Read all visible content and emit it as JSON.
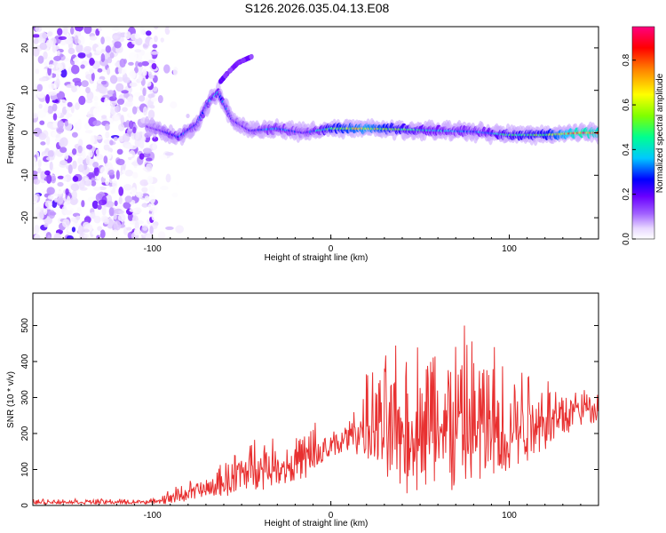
{
  "figure": {
    "title": "S126.2026.035.04.13.E08"
  },
  "chart_data": [
    {
      "type": "heatmap",
      "name": "spectrogram",
      "xlabel": "Height of straight line (km)",
      "ylabel": "Frequency (Hz)",
      "xlim": [
        -167,
        150
      ],
      "ylim": [
        -25,
        25
      ],
      "xticks": [
        -100,
        0,
        100
      ],
      "yticks": [
        -20,
        -10,
        0,
        10,
        20
      ],
      "colorbar": {
        "label": "Normalized spectral amplitude",
        "range": [
          0,
          0.95
        ],
        "ticks": [
          0.0,
          0.2,
          0.4,
          0.6,
          0.8
        ],
        "colors": [
          "#ffffff",
          "#e8d8ff",
          "#a060ff",
          "#6a00ff",
          "#0000ff",
          "#00c8ff",
          "#00ff90",
          "#80ff00",
          "#ffff00",
          "#ff8000",
          "#ff0000",
          "#ff0080"
        ]
      },
      "features": {
        "noise_region_x": [
          -167,
          -98
        ],
        "ridge": [
          {
            "x": -103,
            "f": 1.5,
            "a": 0.25
          },
          {
            "x": -95,
            "f": 0.5,
            "a": 0.3
          },
          {
            "x": -85,
            "f": -1.0,
            "a": 0.4
          },
          {
            "x": -75,
            "f": 2.0,
            "a": 0.35
          },
          {
            "x": -68,
            "f": 7.5,
            "a": 0.4
          },
          {
            "x": -63,
            "f": 9.5,
            "a": 0.45
          },
          {
            "x": -55,
            "f": 3.0,
            "a": 0.3
          },
          {
            "x": -45,
            "f": 0.5,
            "a": 0.3
          },
          {
            "x": -30,
            "f": 1.0,
            "a": 0.45
          },
          {
            "x": -15,
            "f": 0.0,
            "a": 0.3
          },
          {
            "x": 0,
            "f": 1.0,
            "a": 0.6
          },
          {
            "x": 20,
            "f": 1.0,
            "a": 0.75
          },
          {
            "x": 40,
            "f": 0.8,
            "a": 0.55
          },
          {
            "x": 60,
            "f": 0.5,
            "a": 0.45
          },
          {
            "x": 80,
            "f": 0.3,
            "a": 0.4
          },
          {
            "x": 100,
            "f": -0.5,
            "a": 0.55
          },
          {
            "x": 120,
            "f": -0.5,
            "a": 0.6
          },
          {
            "x": 140,
            "f": 0.0,
            "a": 0.9
          },
          {
            "x": 150,
            "f": 0.0,
            "a": 0.85
          }
        ],
        "branch": [
          {
            "x": -62,
            "f": 12
          },
          {
            "x": -58,
            "f": 14
          },
          {
            "x": -52,
            "f": 16.5
          },
          {
            "x": -44,
            "f": 18
          }
        ]
      }
    },
    {
      "type": "line",
      "name": "snr",
      "xlabel": "Height of straight line (km)",
      "ylabel": "SNR (10 * v/v)",
      "xlim": [
        -167,
        150
      ],
      "ylim": [
        0,
        590
      ],
      "xticks": [
        -100,
        0,
        100
      ],
      "yticks": [
        0,
        100,
        200,
        300,
        400,
        500
      ],
      "series": [
        {
          "name": "SNR",
          "color": "#e83030",
          "envelope": {
            "x": [
              -167,
              -120,
              -100,
              -90,
              -80,
              -70,
              -60,
              -50,
              -40,
              -30,
              -20,
              -10,
              0,
              10,
              20,
              30,
              40,
              50,
              60,
              70,
              80,
              90,
              100,
              110,
              120,
              130,
              140,
              150
            ],
            "upper": [
              20,
              20,
              20,
              50,
              75,
              85,
              130,
              190,
              220,
              190,
              210,
              260,
              220,
              250,
              380,
              450,
              480,
              510,
              590,
              540,
              530,
              500,
              460,
              450,
              400,
              360,
              350,
              330
            ],
            "lower": [
              3,
              3,
              3,
              3,
              10,
              15,
              20,
              30,
              40,
              50,
              60,
              60,
              120,
              150,
              120,
              60,
              30,
              20,
              10,
              10,
              20,
              30,
              50,
              100,
              150,
              180,
              220,
              230
            ]
          }
        }
      ]
    }
  ]
}
